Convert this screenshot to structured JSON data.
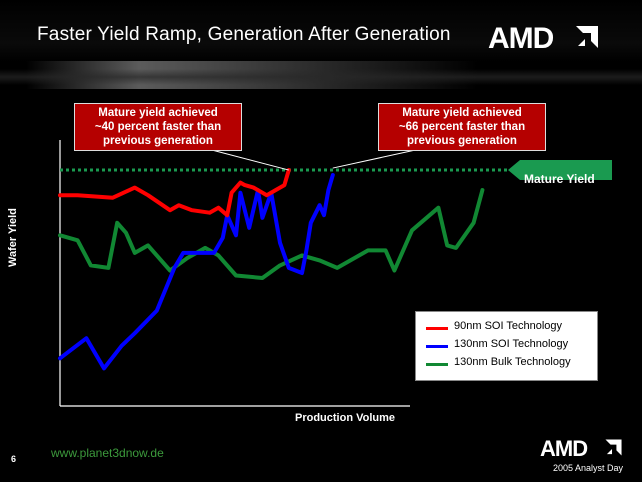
{
  "slide": {
    "title": "Faster Yield Ramp, Generation After Generation",
    "logo_text": "AMD",
    "page_number": "6",
    "website": "www.planet3dnow.de",
    "footer_logo_text": "AMD",
    "footer_event": "2005 Analyst Day"
  },
  "callouts": {
    "left": [
      "Mature yield achieved",
      "~40 percent faster than",
      "previous generation"
    ],
    "right": [
      "Mature yield achieved",
      "~66 percent faster than",
      "previous generation"
    ]
  },
  "colors": {
    "series_90nm": "#ff0000",
    "series_130nm_soi": "#0000ff",
    "series_130nm_bulk": "#118833",
    "mature_line": "#1a9a50",
    "callout_bg": "#b50000"
  },
  "chart_data": {
    "type": "line",
    "xlabel": "Production Volume",
    "ylabel": "Wafer Yield",
    "xlim": [
      0,
      100
    ],
    "ylim": [
      0,
      100
    ],
    "ticks_shown": false,
    "grid": false,
    "legend_position": "bottom-right",
    "reference_line": {
      "label": "Mature Yield",
      "y": 94
    },
    "series": [
      {
        "name": "90nm SOI Technology",
        "x": [
          0,
          4,
          12,
          17,
          20,
          25,
          27,
          30,
          34,
          36,
          38,
          39,
          41,
          42,
          44,
          46,
          47,
          49,
          51,
          52
        ],
        "y": [
          84,
          84,
          83,
          87,
          84,
          78,
          80,
          78,
          77,
          79,
          76,
          85,
          89,
          88,
          87,
          85,
          84,
          86,
          88,
          94
        ]
      },
      {
        "name": "130nm SOI Technology",
        "x": [
          0,
          6,
          10,
          14,
          17,
          22,
          26,
          28,
          35,
          37,
          38,
          40,
          41,
          43,
          45,
          46,
          48,
          50,
          52,
          55,
          56,
          57,
          59,
          60,
          61,
          62
        ],
        "y": [
          19,
          27,
          15,
          24,
          29,
          38,
          55,
          61,
          61,
          67,
          76,
          68,
          85,
          71,
          86,
          75,
          85,
          65,
          55,
          53,
          62,
          73,
          80,
          76,
          86,
          92
        ]
      },
      {
        "name": "130nm Bulk Technology",
        "x": [
          0,
          4,
          7,
          11,
          13,
          15,
          17,
          20,
          25,
          29,
          33,
          36,
          40,
          46,
          50,
          55,
          59,
          63,
          66,
          70,
          74,
          76,
          80,
          86,
          88,
          90,
          94,
          96
        ],
        "y": [
          68,
          66,
          56,
          55,
          73,
          69,
          61,
          64,
          54,
          59,
          63,
          60,
          52,
          51,
          56,
          60,
          58,
          55,
          58,
          62,
          62,
          54,
          70,
          79,
          64,
          63,
          73,
          86
        ]
      }
    ],
    "annotations": [
      "Mature yield achieved ~40 percent faster than previous generation",
      "Mature yield achieved ~66 percent faster than previous generation"
    ]
  }
}
